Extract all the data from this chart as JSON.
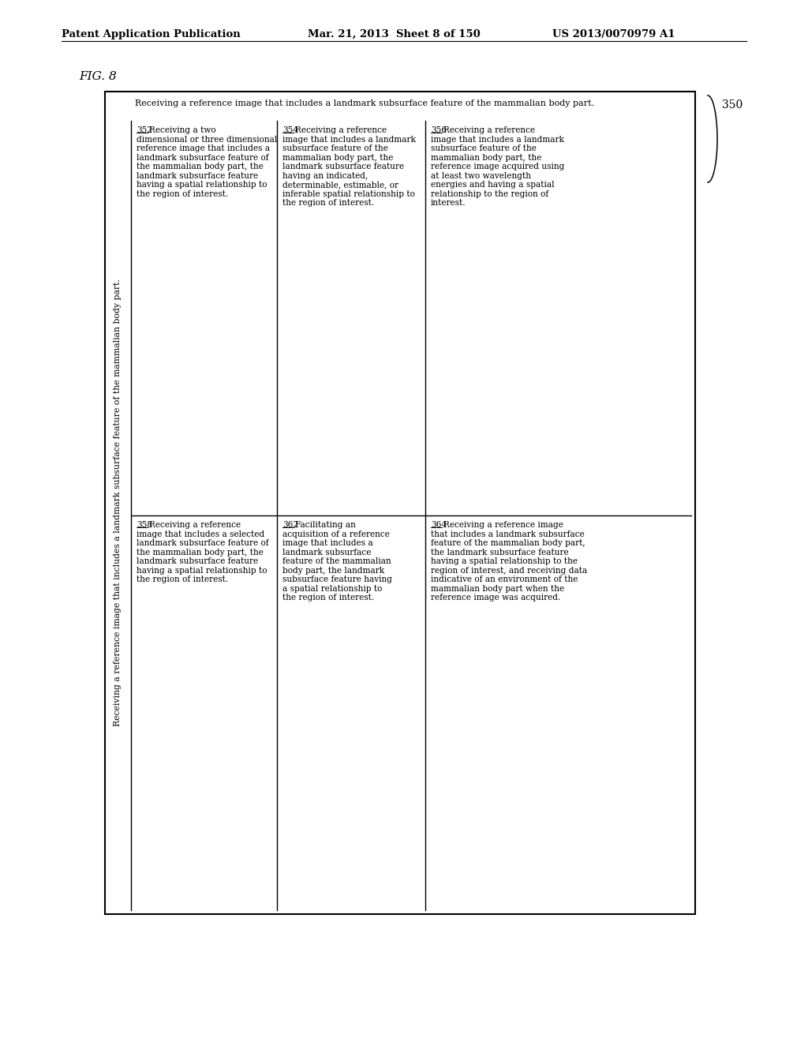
{
  "header_left": "Patent Application Publication",
  "header_mid": "Mar. 21, 2013  Sheet 8 of 150",
  "header_right": "US 2013/0070979 A1",
  "fig_label": "FIG. 8",
  "label_350": "350",
  "top_text": "Receiving a reference image that includes a landmark subsurface feature of the mammalian body part.",
  "vertical_text": "Receiving a reference image that includes a landmark subsurface feature of the mammalian body part.",
  "box_352_label": "352",
  "box_352_text": "Receiving a two\ndimensional or three dimensional\nreference image that includes a\nlandmark subsurface feature of\nthe mammalian body part, the\nlandmark subsurface feature\nhaving a spatial relationship to\nthe region of interest.",
  "box_354_label": "354",
  "box_354_text": "Receiving a reference\nimage that includes a landmark\nsubsurface feature of the\nmammalian body part, the\nlandmark subsurface feature\nhaving an indicated,\ndeterminable, estimable, or\ninferable spatial relationship to\nthe region of interest.",
  "box_356_label": "356",
  "box_356_text": "Receiving a reference\nimage that includes a landmark\nsubsurface feature of the\nmammalian body part, the\nreference image acquired using\nat least two wavelength\nenergies and having a spatial\nrelationship to the region of\ninterest.",
  "box_358_label": "358",
  "box_358_text": "Receiving a reference\nimage that includes a selected\nlandmark subsurface feature of\nthe mammalian body part, the\nlandmark subsurface feature\nhaving a spatial relationship to\nthe region of interest.",
  "box_362_label": "362",
  "box_362_text": "Facilitating an\nacquisition of a reference\nimage that includes a\nlandmark subsurface\nfeature of the mammalian\nbody part, the landmark\nsubsurface feature having\na spatial relationship to\nthe region of interest.",
  "box_364_label": "364",
  "box_364_text": "Receiving a reference image\nthat includes a landmark subsurface\nfeature of the mammalian body part,\nthe landmark subsurface feature\nhaving a spatial relationship to the\nregion of interest, and receiving data\nindicative of an environment of the\nmammalian body part when the\nreference image was acquired.",
  "bg_color": "#ffffff",
  "text_color": "#000000"
}
